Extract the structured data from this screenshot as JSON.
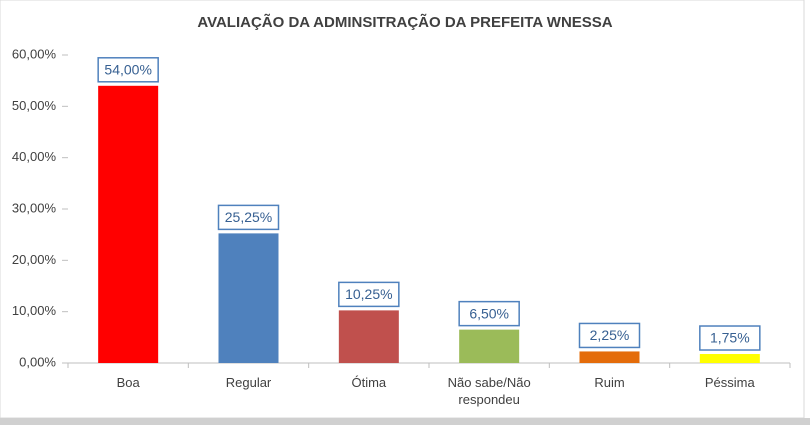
{
  "chart_data": {
    "type": "bar",
    "title": "AVALIAÇÃO DA ADMINSITRAÇÃO DA PREFEITA WNESSA",
    "categories": [
      "Boa",
      "Regular",
      "Ótima",
      "Não sabe/Não respondeu",
      "Ruim",
      "Péssima"
    ],
    "values": [
      54,
      25.25,
      10.25,
      6.5,
      2.25,
      1.75
    ],
    "value_labels": [
      "54,00%",
      "25,25%",
      "10,25%",
      "6,50%",
      "2,25%",
      "1,75%"
    ],
    "colors": [
      "#ff0000",
      "#4f81bd",
      "#c0504d",
      "#9bbb59",
      "#e46c0a",
      "#ffff00"
    ],
    "ylim": [
      0,
      60
    ],
    "yticks": [
      {
        "value": 0,
        "label": "0,00%"
      },
      {
        "value": 10,
        "label": "10,00%"
      },
      {
        "value": 20,
        "label": "20,00%"
      },
      {
        "value": 30,
        "label": "30,00%"
      },
      {
        "value": 40,
        "label": "40,00%"
      },
      {
        "value": 50,
        "label": "50,00%"
      },
      {
        "value": 60,
        "label": "60,00%"
      }
    ],
    "grid": false
  }
}
